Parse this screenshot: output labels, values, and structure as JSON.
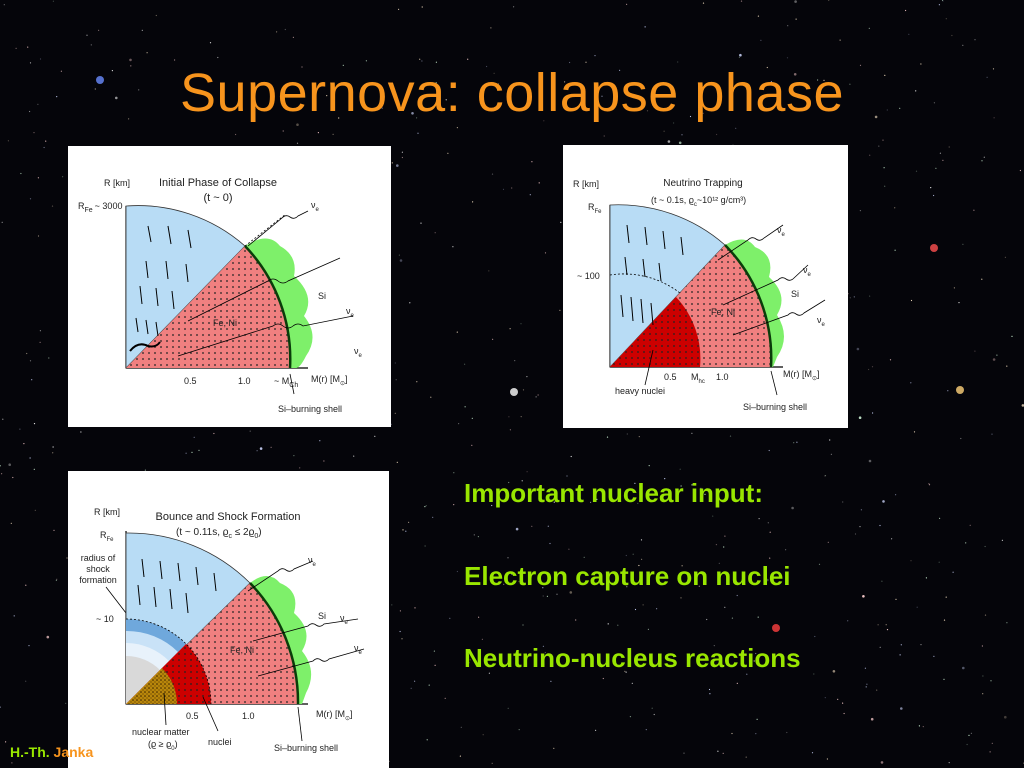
{
  "slide": {
    "title": "Supernova: collapse phase"
  },
  "panel1": {
    "title": "Initial Phase of Collapse",
    "subtitle": "(t ~ 0)",
    "y_axis": "R [km]",
    "rfe": "R",
    "rfe_sub": "Fe",
    "rfe_val": "~ 3000",
    "core_label": "Fe, Ni",
    "si_label": "Si",
    "nu": "ν",
    "nu_sub": "e",
    "tick1": "0.5",
    "tick2": "1.0",
    "mch": "~ M",
    "mch_sub": "Ch",
    "x_axis": "M(r) [M",
    "x_axis_sub": "⊙",
    "x_axis_end": "]",
    "shell": "Si–burning shell"
  },
  "panel2": {
    "title": "Neutrino Trapping",
    "subtitle": "(t ~ 0.1s, ϱ",
    "subtitle_sub": "c",
    "subtitle_end": "~10¹² g/cm³)",
    "y_axis": "R [km]",
    "rfe": "R",
    "rfe_sub": "Fe",
    "r100": "~ 100",
    "core_label": "Fe, Ni",
    "si_label": "Si",
    "nu": "ν",
    "nu_sub": "e",
    "tick1": "0.5",
    "mhc": "M",
    "mhc_sub": "hc",
    "tick2": "1.0",
    "x_axis": "M(r) [M",
    "x_axis_sub": "⊙",
    "x_axis_end": "]",
    "heavy": "heavy nuclei",
    "shell": "Si–burning shell"
  },
  "panel3": {
    "title": "Bounce and Shock Formation",
    "subtitle": "(t ~ 0.11s, ϱ",
    "subtitle_sub": "c",
    "subtitle_mid": " ≤ 2ϱ",
    "subtitle_sub2": "0",
    "subtitle_end": ")",
    "y_axis": "R [km]",
    "rfe": "R",
    "rfe_sub": "Fe",
    "shock_l1": "radius of",
    "shock_l2": "shock",
    "shock_l3": "formation",
    "r10": "~ 10",
    "core_label": "Fe, Ni",
    "si_label": "Si",
    "nu": "ν",
    "nu_sub": "e",
    "tick1": "0.5",
    "tick2": "1.0",
    "x_axis": "M(r) [M",
    "x_axis_sub": "⊙",
    "x_axis_end": "]",
    "nm_l1": "nuclear matter",
    "nm_l2": "(ϱ ≥ ϱ",
    "nm_sub": "0",
    "nm_end": ")",
    "nuclei": "nuclei",
    "shell": "Si–burning shell"
  },
  "bullets": {
    "heading": "Important nuclear input:",
    "item1": "Electron capture on nuclei",
    "item2": "Neutrino-nucleus reactions"
  },
  "credit": {
    "part1": "H.-Th. ",
    "part2": "Janka"
  },
  "colors": {
    "title": "#f7941d",
    "bullets": "#99e600",
    "blue_region": "#b8dcf5",
    "red_region": "#f08080",
    "green_shell": "#7ef06a",
    "dark_red": "#cc0000"
  }
}
